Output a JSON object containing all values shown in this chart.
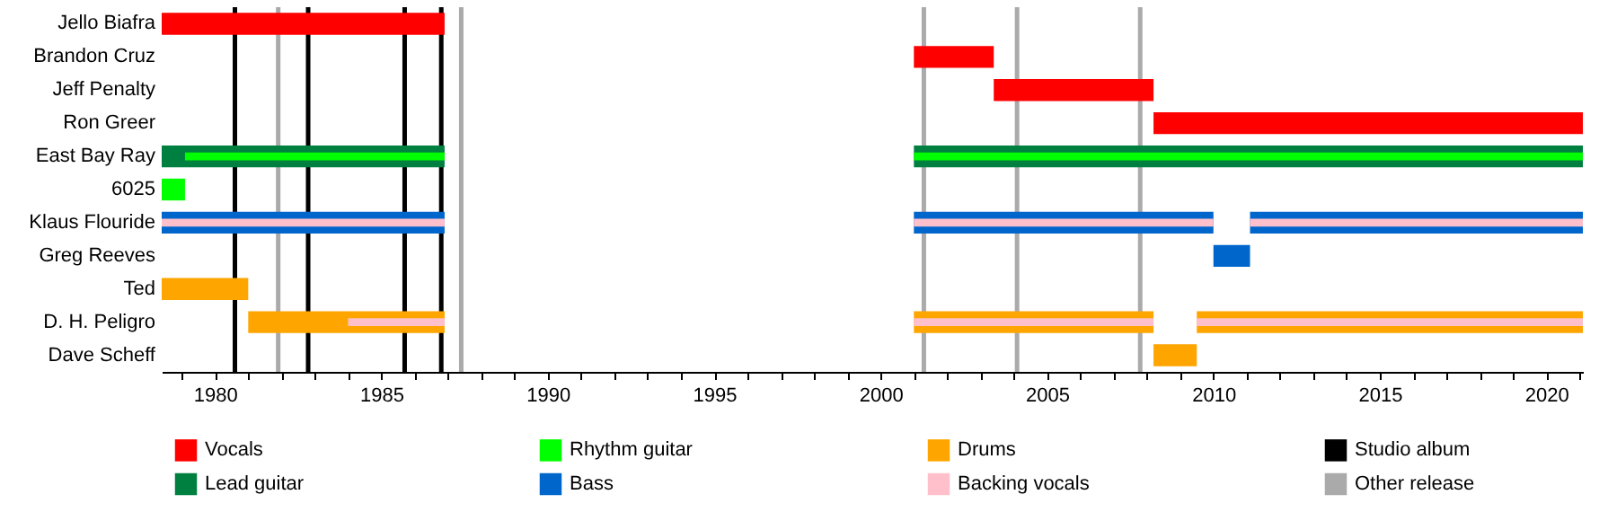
{
  "chart_data": {
    "type": "bar",
    "orientation": "horizontal",
    "legend": "bottom",
    "grid": false,
    "categories": [
      "Jello Biafra",
      "Brandon Cruz",
      "Jeff Penalty",
      "Ron Greer",
      "East Bay Ray",
      "6025",
      "Klaus Flouride",
      "Greg Reeves",
      "Ted",
      "D. H. Peligro",
      "Dave Scheff"
    ],
    "xlim": [
      1978.4,
      2021.1
    ],
    "xticks": [
      {
        "value": 1979,
        "label": null
      },
      1980,
      {
        "value": 1981,
        "label": null
      },
      {
        "value": 1982,
        "label": null
      },
      {
        "value": 1983,
        "label": null
      },
      {
        "value": 1984,
        "label": null
      },
      1985,
      {
        "value": 1986,
        "label": null
      },
      {
        "value": 1987,
        "label": null
      },
      {
        "value": 1988,
        "label": null
      },
      {
        "value": 1989,
        "label": null
      },
      1990,
      {
        "value": 1991,
        "label": null
      },
      {
        "value": 1992,
        "label": null
      },
      {
        "value": 1993,
        "label": null
      },
      {
        "value": 1994,
        "label": null
      },
      1995,
      {
        "value": 1996,
        "label": null
      },
      {
        "value": 1997,
        "label": null
      },
      {
        "value": 1998,
        "label": null
      },
      {
        "value": 1999,
        "label": null
      },
      2000,
      {
        "value": 2001,
        "label": null
      },
      {
        "value": 2002,
        "label": null
      },
      {
        "value": 2003,
        "label": null
      },
      {
        "value": 2004,
        "label": null
      },
      2005,
      {
        "value": 2006,
        "label": null
      },
      {
        "value": 2007,
        "label": null
      },
      {
        "value": 2008,
        "label": null
      },
      {
        "value": 2009,
        "label": null
      },
      2010,
      {
        "value": 2011,
        "label": null
      },
      {
        "value": 2012,
        "label": null
      },
      {
        "value": 2013,
        "label": null
      },
      {
        "value": 2014,
        "label": null
      },
      2015,
      {
        "value": 2016,
        "label": null
      },
      {
        "value": 2017,
        "label": null
      },
      {
        "value": 2018,
        "label": null
      },
      {
        "value": 2019,
        "label": null
      },
      2020,
      {
        "value": 2021,
        "label": null
      }
    ],
    "series": [
      {
        "name": "Vocals",
        "color": "#ff0000",
        "base": [
          1978.4,
          2001.0,
          2003.4,
          2008.2,
          null,
          null,
          null,
          null,
          null,
          null,
          null
        ],
        "values": [
          8.5,
          2.4,
          4.8,
          12.9,
          null,
          null,
          null,
          null,
          null,
          null,
          null
        ]
      },
      {
        "name": "Lead guitar",
        "color": "#008040",
        "base": [
          null,
          null,
          null,
          null,
          1978.4,
          null,
          null,
          null,
          null,
          null,
          null
        ],
        "values": [
          null,
          null,
          null,
          null,
          8.5,
          null,
          null,
          null,
          null,
          null,
          null
        ]
      },
      {
        "color": "#008040",
        "base": [
          null,
          null,
          null,
          null,
          2001.0,
          null,
          null,
          null,
          null,
          null,
          null
        ],
        "values": [
          null,
          null,
          null,
          null,
          20.1,
          null,
          null,
          null,
          null,
          null,
          null
        ]
      },
      {
        "name": "Rhythm guitar",
        "color": "#00ff00",
        "base": [
          null,
          null,
          null,
          null,
          1979.1,
          1978.4,
          null,
          null,
          null,
          null,
          null
        ],
        "values": [
          null,
          null,
          null,
          null,
          7.8,
          0.7,
          null,
          null,
          null,
          null,
          null
        ]
      },
      {
        "color": "#00ff00",
        "base": [
          null,
          null,
          null,
          null,
          2001.0,
          null,
          null,
          null,
          null,
          null,
          null
        ],
        "values": [
          null,
          null,
          null,
          null,
          20.1,
          null,
          null,
          null,
          null,
          null,
          null
        ]
      },
      {
        "name": "Bass",
        "color": "#0066cc",
        "base": [
          null,
          null,
          null,
          null,
          null,
          null,
          1978.4,
          2010.0,
          null,
          null,
          null
        ],
        "values": [
          null,
          null,
          null,
          null,
          null,
          null,
          8.5,
          1.1,
          null,
          null,
          null
        ]
      },
      {
        "color": "#0066cc",
        "base": [
          null,
          null,
          null,
          null,
          null,
          null,
          2001.0,
          null,
          null,
          null,
          null
        ],
        "values": [
          null,
          null,
          null,
          null,
          null,
          null,
          9.0,
          null,
          null,
          null,
          null
        ]
      },
      {
        "color": "#0066cc",
        "base": [
          null,
          null,
          null,
          null,
          null,
          null,
          2011.1,
          null,
          null,
          null,
          null
        ],
        "values": [
          null,
          null,
          null,
          null,
          null,
          null,
          10.0,
          null,
          null,
          null,
          null
        ]
      },
      {
        "name": "Drums",
        "color": "#ffa500",
        "base": [
          null,
          null,
          null,
          null,
          null,
          null,
          null,
          null,
          1978.4,
          1981.0,
          2008.2
        ],
        "values": [
          null,
          null,
          null,
          null,
          null,
          null,
          null,
          null,
          2.6,
          5.9,
          1.3
        ]
      },
      {
        "color": "#ffa500",
        "base": [
          null,
          null,
          null,
          null,
          null,
          null,
          null,
          null,
          null,
          2001.0,
          null
        ],
        "values": [
          null,
          null,
          null,
          null,
          null,
          null,
          null,
          null,
          null,
          7.2,
          null
        ]
      },
      {
        "color": "#ffa500",
        "base": [
          null,
          null,
          null,
          null,
          null,
          null,
          null,
          null,
          null,
          2009.5,
          null
        ],
        "values": [
          null,
          null,
          null,
          null,
          null,
          null,
          null,
          null,
          null,
          11.6,
          null
        ]
      },
      {
        "name": "Backing vocals",
        "color": "#ffc0cb",
        "base": [
          null,
          null,
          null,
          null,
          null,
          null,
          1978.4,
          null,
          null,
          1984.0,
          null
        ],
        "values": [
          null,
          null,
          null,
          null,
          null,
          null,
          8.5,
          null,
          null,
          2.9,
          null
        ]
      },
      {
        "color": "#ffc0cb",
        "base": [
          null,
          null,
          null,
          null,
          null,
          null,
          2001.0,
          null,
          null,
          2001.0,
          null
        ],
        "values": [
          null,
          null,
          null,
          null,
          null,
          null,
          9.0,
          null,
          null,
          7.2,
          null
        ]
      },
      {
        "color": "#ffc0cb",
        "base": [
          null,
          null,
          null,
          null,
          null,
          null,
          2011.1,
          null,
          null,
          2009.5,
          null
        ],
        "values": [
          null,
          null,
          null,
          null,
          null,
          null,
          10.0,
          null,
          null,
          11.6,
          null
        ]
      }
    ],
    "ref_lines": [
      {
        "axis": "x",
        "value": 1980.6,
        "label": "Studio album",
        "color": "#000000"
      },
      {
        "axis": "x",
        "value": 1982.8,
        "color": "#000000"
      },
      {
        "axis": "x",
        "value": 1985.7,
        "color": "#000000"
      },
      {
        "axis": "x",
        "value": 1986.8,
        "color": "#000000"
      },
      {
        "axis": "x",
        "value": 1981.9,
        "label": "Other release",
        "color": "#aaaaaa"
      },
      {
        "axis": "x",
        "value": 1987.4,
        "color": "#aaaaaa"
      },
      {
        "axis": "x",
        "value": 2001.3,
        "color": "#aaaaaa"
      },
      {
        "axis": "x",
        "value": 2004.1,
        "color": "#aaaaaa"
      },
      {
        "axis": "x",
        "value": 2007.8,
        "color": "#aaaaaa"
      }
    ]
  }
}
